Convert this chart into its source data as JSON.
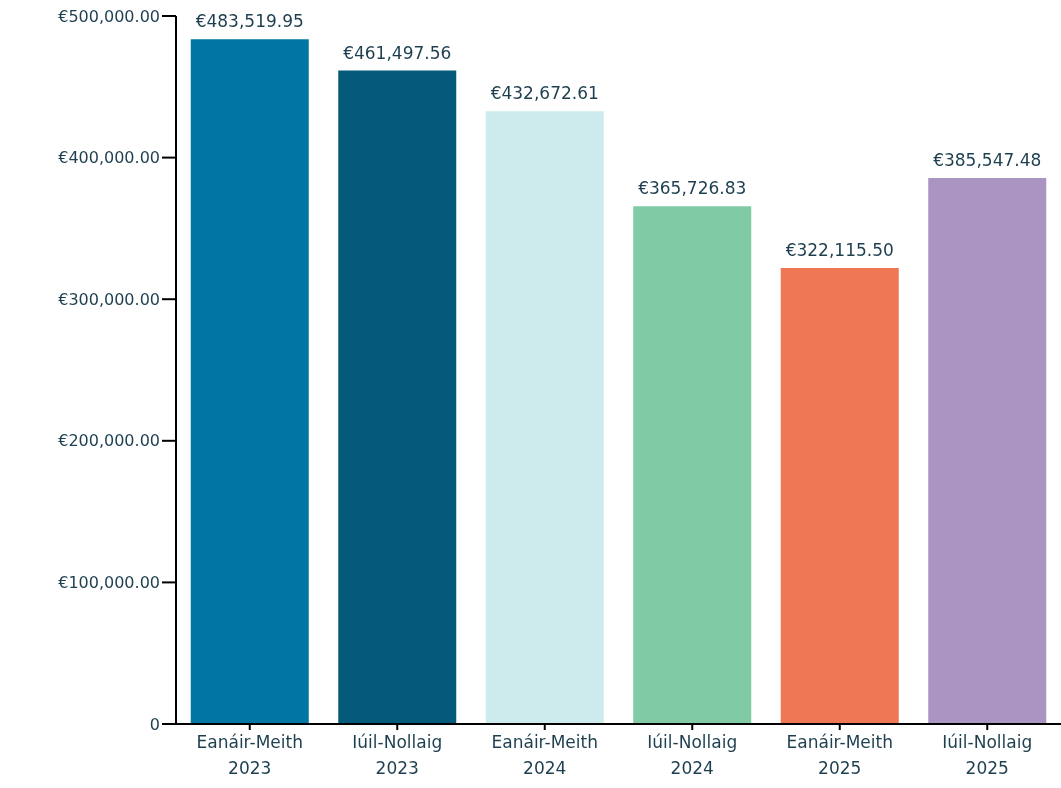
{
  "chart_data": {
    "type": "bar",
    "categories": [
      "Eanáir-Meith\n2023",
      "Iúil-Nollaig\n2023",
      "Eanáir-Meith\n2024",
      "Iúil-Nollaig\n2024",
      "Eanáir-Meith\n2025",
      "Iúil-Nollaig\n2025"
    ],
    "values": [
      483519.95,
      461497.56,
      432672.61,
      365726.83,
      322115.5,
      385547.48
    ],
    "colors": [
      "#0077a3",
      "#055a7b",
      "#cdebed",
      "#80cba5",
      "#ef7753",
      "#a994c2"
    ],
    "value_labels": [
      "€483,519.95",
      "€461,497.56",
      "€432,672.61",
      "€365,726.83",
      "€322,115.50",
      "€385,547.48"
    ],
    "ylim": [
      0,
      500000
    ],
    "yticks": [
      {
        "value": 0,
        "label": "0"
      },
      {
        "value": 100000,
        "label": "€100,000.00"
      },
      {
        "value": 200000,
        "label": "€200,000.00"
      },
      {
        "value": 300000,
        "label": "€300,000.00"
      },
      {
        "value": 400000,
        "label": "€400,000.00"
      },
      {
        "value": 500000,
        "label": "€500,000.00"
      }
    ],
    "grid": false,
    "legend": false
  }
}
